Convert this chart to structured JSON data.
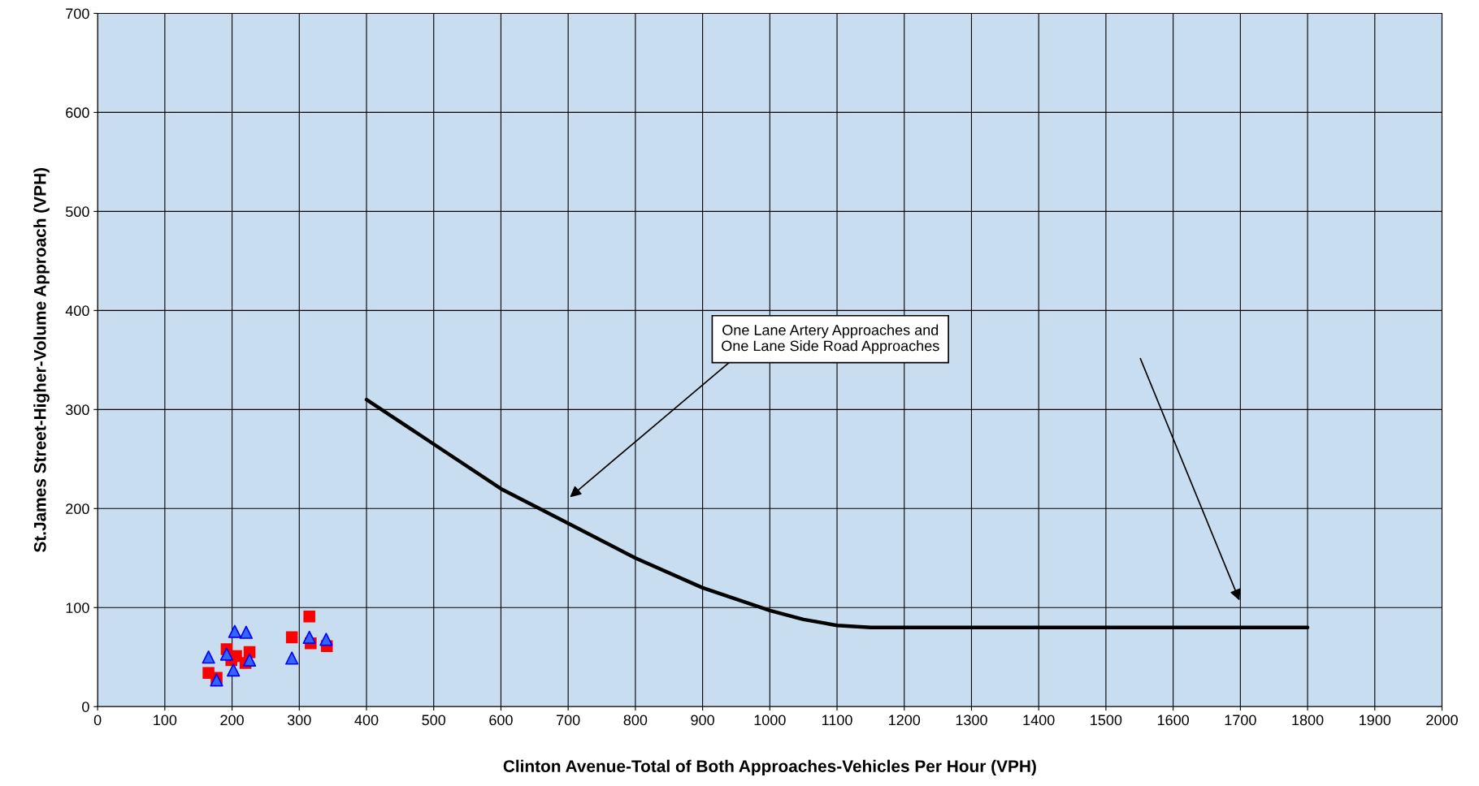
{
  "chart_data": {
    "type": "scatter",
    "xlabel": "Clinton Avenue-Total of Both Approaches-Vehicles Per Hour (VPH)",
    "ylabel": "St.James Street-Higher-Volume Approach (VPH)",
    "xlim": [
      0,
      2000
    ],
    "ylim": [
      0,
      700
    ],
    "xticks": [
      0,
      100,
      200,
      300,
      400,
      500,
      600,
      700,
      800,
      900,
      1000,
      1100,
      1200,
      1300,
      1400,
      1500,
      1600,
      1700,
      1800,
      1900,
      2000
    ],
    "yticks": [
      0,
      100,
      200,
      300,
      400,
      500,
      600,
      700
    ],
    "grid": true,
    "legend": false,
    "series": [
      {
        "type": "line",
        "color": "#000000",
        "marker": "none",
        "line_style": "solid",
        "x": [
          400,
          500,
          600,
          700,
          800,
          900,
          1000,
          1050,
          1100,
          1150,
          1200,
          1800
        ],
        "values": [
          310,
          265,
          220,
          185,
          150,
          120,
          97,
          88,
          82,
          80,
          80,
          80
        ]
      },
      {
        "color": "#ff0000",
        "marker": "square",
        "x": [
          315,
          289,
          317,
          341,
          192,
          226,
          206,
          199,
          220,
          165,
          177
        ],
        "values": [
          91,
          70,
          64,
          61,
          58,
          55,
          51,
          47,
          44,
          34,
          29
        ]
      },
      {
        "color": "#3366ff",
        "marker": "triangle",
        "x": [
          204,
          221,
          315,
          340,
          165,
          192,
          289,
          226,
          202,
          177
        ],
        "values": [
          76,
          75,
          70,
          68,
          50,
          53,
          49,
          47,
          37,
          27
        ]
      }
    ],
    "annotations": [
      "One Lane Artery Approaches and\nOne Lane Side Road Approaches"
    ]
  }
}
